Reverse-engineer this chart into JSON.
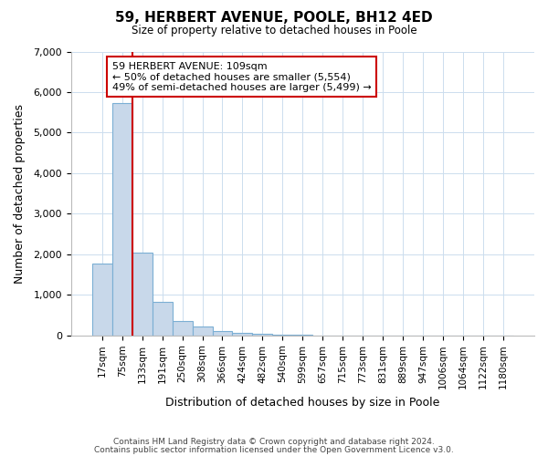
{
  "title": "59, HERBERT AVENUE, POOLE, BH12 4ED",
  "subtitle": "Size of property relative to detached houses in Poole",
  "xlabel": "Distribution of detached houses by size in Poole",
  "ylabel": "Number of detached properties",
  "bin_labels": [
    "17sqm",
    "75sqm",
    "133sqm",
    "191sqm",
    "250sqm",
    "308sqm",
    "366sqm",
    "424sqm",
    "482sqm",
    "540sqm",
    "599sqm",
    "657sqm",
    "715sqm",
    "773sqm",
    "831sqm",
    "889sqm",
    "947sqm",
    "1006sqm",
    "1064sqm",
    "1122sqm",
    "1180sqm"
  ],
  "bar_values": [
    1770,
    5730,
    2050,
    820,
    360,
    220,
    100,
    60,
    30,
    10,
    5,
    3,
    2,
    0,
    0,
    0,
    0,
    0,
    0,
    0,
    0
  ],
  "bar_color": "#c8d8ea",
  "bar_edge_color": "#7bafd4",
  "ylim": [
    0,
    7000
  ],
  "yticks": [
    0,
    1000,
    2000,
    3000,
    4000,
    5000,
    6000,
    7000
  ],
  "property_line_color": "#cc0000",
  "property_line_x": 1.5,
  "annotation_title": "59 HERBERT AVENUE: 109sqm",
  "annotation_line1": "← 50% of detached houses are smaller (5,554)",
  "annotation_line2": "49% of semi-detached houses are larger (5,499) →",
  "annotation_box_color": "#ffffff",
  "annotation_box_edge": "#cc0000",
  "footer1": "Contains HM Land Registry data © Crown copyright and database right 2024.",
  "footer2": "Contains public sector information licensed under the Open Government Licence v3.0."
}
